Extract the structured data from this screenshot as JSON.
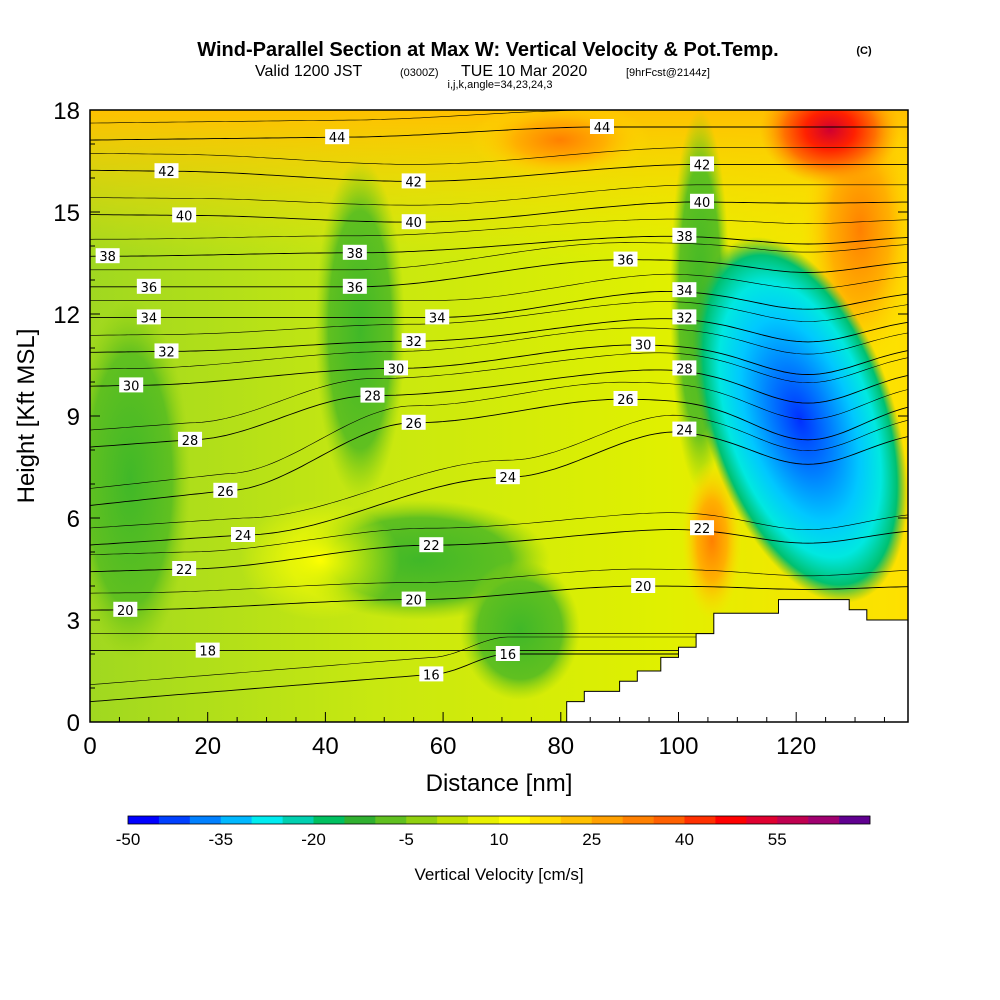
{
  "title": {
    "main": "Wind-Parallel Section at Max W: Vertical Velocity & Pot.Temp.",
    "main_tag": "(C)",
    "valid_prefix": "Valid 1200 JST",
    "valid_zulu": "(0300Z)",
    "valid_date": "TUE 10 Mar 2020",
    "valid_fcst": "[9hrFcst@2144z]",
    "indices": "i,j,k,angle=34,23,24,3"
  },
  "chart_data": {
    "type": "heatmap",
    "xlabel": "Distance [nm]",
    "ylabel": "Height [Kft MSL]",
    "xlim": [
      0,
      139
    ],
    "ylim": [
      0,
      18
    ],
    "x_ticks": [
      0,
      20,
      40,
      60,
      80,
      100,
      120
    ],
    "y_ticks": [
      0,
      3,
      6,
      9,
      12,
      15,
      18
    ],
    "colorbar": {
      "label": "Vertical Velocity [cm/s]",
      "levels": [
        -50,
        -45,
        -40,
        -35,
        -30,
        -25,
        -20,
        -15,
        -10,
        -5,
        0,
        5,
        10,
        15,
        20,
        25,
        30,
        35,
        40,
        45,
        50,
        55,
        60,
        65
      ],
      "tick_labels": [
        "-50",
        "-35",
        "-20",
        "-5",
        "10",
        "25",
        "40",
        "55"
      ],
      "colors": [
        "#0000ff",
        "#0040ff",
        "#0080ff",
        "#00b8ff",
        "#00ecf0",
        "#00d0b0",
        "#00c060",
        "#30b030",
        "#60c020",
        "#90d010",
        "#c0e000",
        "#e8f000",
        "#ffff00",
        "#ffe000",
        "#ffc000",
        "#ffa000",
        "#ff8000",
        "#ff6000",
        "#ff3000",
        "#ff0000",
        "#e00030",
        "#c00050",
        "#a00070",
        "#600090"
      ]
    },
    "vertical_velocity_features": [
      {
        "type": "downdraft",
        "x": 124,
        "y": 9.5,
        "min": -50
      },
      {
        "type": "updraft",
        "x": 108,
        "y": 5.5,
        "max": 30
      },
      {
        "type": "updraft",
        "x": 125,
        "y": 17.8,
        "max": 50
      }
    ],
    "theta_contours": {
      "label_sets": [
        {
          "level": 16,
          "labels": [
            {
              "x": 58,
              "y": 1.4
            },
            {
              "x": 71,
              "y": 2.0
            }
          ]
        },
        {
          "level": 18,
          "labels": [
            {
              "x": 20,
              "y": 2.1
            }
          ]
        },
        {
          "level": 20,
          "labels": [
            {
              "x": 6,
              "y": 3.3
            },
            {
              "x": 55,
              "y": 3.6
            },
            {
              "x": 94,
              "y": 4.0
            }
          ]
        },
        {
          "level": 22,
          "labels": [
            {
              "x": 16,
              "y": 4.5
            },
            {
              "x": 58,
              "y": 5.2
            },
            {
              "x": 104,
              "y": 5.7
            }
          ]
        },
        {
          "level": 24,
          "labels": [
            {
              "x": 26,
              "y": 5.5
            },
            {
              "x": 71,
              "y": 7.2
            },
            {
              "x": 101,
              "y": 8.6
            }
          ]
        },
        {
          "level": 26,
          "labels": [
            {
              "x": 23,
              "y": 6.8
            },
            {
              "x": 55,
              "y": 8.8
            },
            {
              "x": 91,
              "y": 9.5
            }
          ]
        },
        {
          "level": 28,
          "labels": [
            {
              "x": 17,
              "y": 8.3
            },
            {
              "x": 48,
              "y": 9.6
            },
            {
              "x": 101,
              "y": 10.4
            }
          ]
        },
        {
          "level": 30,
          "labels": [
            {
              "x": 7,
              "y": 9.9
            },
            {
              "x": 52,
              "y": 10.4
            },
            {
              "x": 94,
              "y": 11.1
            }
          ]
        },
        {
          "level": 32,
          "labels": [
            {
              "x": 13,
              "y": 10.9
            },
            {
              "x": 55,
              "y": 11.2
            },
            {
              "x": 101,
              "y": 11.9
            }
          ]
        },
        {
          "level": 34,
          "labels": [
            {
              "x": 10,
              "y": 11.9
            },
            {
              "x": 59,
              "y": 11.9
            },
            {
              "x": 101,
              "y": 12.7
            }
          ]
        },
        {
          "level": 36,
          "labels": [
            {
              "x": 10,
              "y": 12.8
            },
            {
              "x": 45,
              "y": 12.8
            },
            {
              "x": 91,
              "y": 13.6
            }
          ]
        },
        {
          "level": 38,
          "labels": [
            {
              "x": 3,
              "y": 13.7
            },
            {
              "x": 45,
              "y": 13.8
            },
            {
              "x": 101,
              "y": 14.3
            }
          ]
        },
        {
          "level": 40,
          "labels": [
            {
              "x": 16,
              "y": 14.9
            },
            {
              "x": 55,
              "y": 14.7
            },
            {
              "x": 104,
              "y": 15.3
            }
          ]
        },
        {
          "level": 42,
          "labels": [
            {
              "x": 13,
              "y": 16.2
            },
            {
              "x": 55,
              "y": 15.9
            },
            {
              "x": 104,
              "y": 16.4
            }
          ]
        },
        {
          "level": 44,
          "labels": [
            {
              "x": 42,
              "y": 17.2
            },
            {
              "x": 87,
              "y": 17.5
            }
          ]
        }
      ]
    },
    "terrain": [
      [
        81,
        0
      ],
      [
        81,
        0.6
      ],
      [
        84,
        0.6
      ],
      [
        84,
        0.9
      ],
      [
        90,
        0.9
      ],
      [
        90,
        1.2
      ],
      [
        93,
        1.2
      ],
      [
        93,
        1.5
      ],
      [
        97,
        1.5
      ],
      [
        97,
        1.9
      ],
      [
        100,
        1.9
      ],
      [
        100,
        2.2
      ],
      [
        103,
        2.2
      ],
      [
        103,
        2.6
      ],
      [
        106,
        2.6
      ],
      [
        106,
        3.2
      ],
      [
        117,
        3.2
      ],
      [
        117,
        3.6
      ],
      [
        129,
        3.6
      ],
      [
        129,
        3.3
      ],
      [
        132,
        3.3
      ],
      [
        132,
        3.0
      ],
      [
        139,
        3.0
      ],
      [
        139,
        0
      ]
    ]
  }
}
